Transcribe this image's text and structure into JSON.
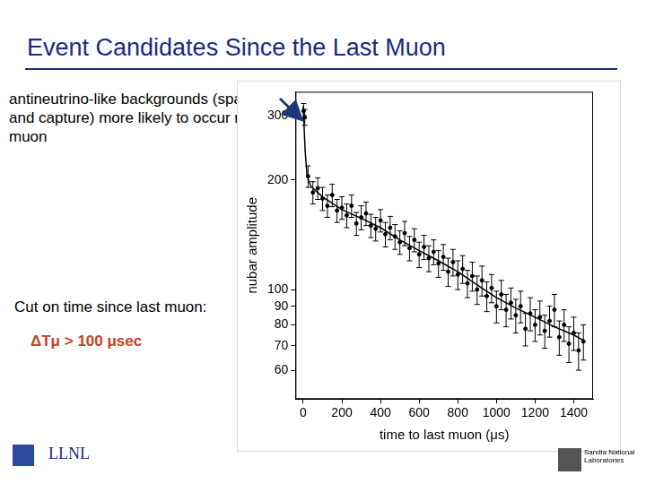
{
  "slide": {
    "title": "Event Candidates Since the Last Muon",
    "annotation": "antineutrino-like backgrounds (spallation and capture) more likely to occur near a muon",
    "cut_text": "Cut on time since last muon:",
    "cut_value": "ΔTμ > 100 μsec",
    "logos": [
      "LLNL",
      "Sandia National Laboratories"
    ]
  },
  "chart_data": {
    "type": "scatter",
    "x_label": "time to last muon (μs)",
    "y_label": "nubar amplitude",
    "log": "y",
    "grid": false,
    "xlim": [
      -40,
      1500
    ],
    "xticks": [
      0,
      200,
      400,
      600,
      800,
      1000,
      1200,
      1400
    ],
    "ylim": [
      50,
      350
    ],
    "yticks": [
      60,
      70,
      80,
      90,
      100,
      200,
      300
    ],
    "series": [
      {
        "type": "scatter",
        "color": "#000000",
        "marker": "circle",
        "x": [
          2,
          8,
          25,
          50,
          75,
          100,
          125,
          150,
          175,
          200,
          225,
          250,
          275,
          300,
          325,
          350,
          375,
          400,
          425,
          450,
          475,
          500,
          525,
          550,
          575,
          600,
          625,
          650,
          675,
          700,
          725,
          750,
          775,
          800,
          825,
          850,
          875,
          900,
          925,
          950,
          975,
          1000,
          1025,
          1050,
          1075,
          1100,
          1125,
          1150,
          1175,
          1200,
          1225,
          1250,
          1275,
          1300,
          1325,
          1350,
          1375,
          1400,
          1425,
          1450
        ],
        "values": [
          310,
          298,
          205,
          185,
          190,
          178,
          170,
          182,
          165,
          168,
          160,
          170,
          152,
          158,
          162,
          150,
          147,
          155,
          142,
          148,
          140,
          135,
          143,
          130,
          137,
          125,
          131,
          122,
          127,
          118,
          123,
          112,
          119,
          110,
          114,
          104,
          109,
          100,
          106,
          96,
          101,
          90,
          97,
          88,
          92,
          85,
          90,
          78,
          86,
          80,
          84,
          77,
          82,
          88,
          74,
          80,
          71,
          76,
          68,
          72
        ],
        "errors": [
          15,
          15,
          14,
          13,
          13,
          13,
          12,
          13,
          12,
          12,
          12,
          12,
          11,
          12,
          12,
          11,
          11,
          11,
          11,
          11,
          11,
          10,
          11,
          10,
          10,
          10,
          10,
          10,
          10,
          10,
          10,
          10,
          10,
          10,
          10,
          9,
          10,
          9,
          10,
          9,
          9,
          9,
          9,
          9,
          9,
          9,
          9,
          8,
          9,
          8,
          9,
          8,
          8,
          9,
          8,
          8,
          8,
          8,
          8,
          8
        ]
      },
      {
        "type": "line",
        "color": "#000000",
        "line_style": "solid",
        "x": [
          0,
          10,
          20,
          40,
          100,
          200,
          300,
          400,
          500,
          600,
          700,
          800,
          900,
          1000,
          1100,
          1200,
          1300,
          1400,
          1460
        ],
        "values": [
          320,
          240,
          205,
          192,
          180,
          166,
          157,
          148,
          137,
          128,
          120,
          112,
          103,
          95,
          89,
          84,
          79,
          75,
          72
        ]
      }
    ]
  }
}
